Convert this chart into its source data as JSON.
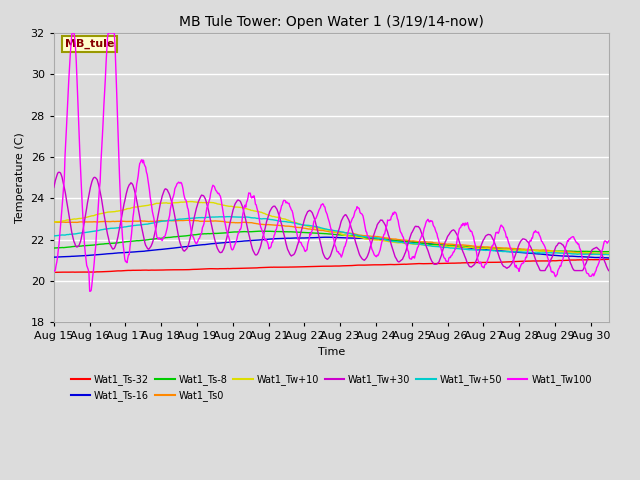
{
  "title": "MB Tule Tower: Open Water 1 (3/19/14-now)",
  "xlabel": "Time",
  "ylabel": "Temperature (C)",
  "ylim": [
    18,
    32
  ],
  "xlim": [
    0,
    15.5
  ],
  "yticks": [
    18,
    20,
    22,
    24,
    26,
    28,
    30,
    32
  ],
  "xtick_labels": [
    "Aug 15",
    "Aug 16",
    "Aug 17",
    "Aug 18",
    "Aug 19",
    "Aug 20",
    "Aug 21",
    "Aug 22",
    "Aug 23",
    "Aug 24",
    "Aug 25",
    "Aug 26",
    "Aug 27",
    "Aug 28",
    "Aug 29",
    "Aug 30"
  ],
  "background_color": "#dcdcdc",
  "plot_bg_color": "#dcdcdc",
  "grid_color": "#ffffff",
  "series_colors": {
    "Wat1_Ts-32": "#ff0000",
    "Wat1_Ts-16": "#0000dd",
    "Wat1_Ts-8": "#00cc00",
    "Wat1_Ts0": "#ff8800",
    "Wat1_Tw+10": "#dddd00",
    "Wat1_Tw+30": "#cc00cc",
    "Wat1_Tw+50": "#00cccc",
    "Wat1_Tw100": "#ff00ff"
  },
  "legend_box_facecolor": "#ffffcc",
  "legend_box_edgecolor": "#999900",
  "legend_box_text_color": "#880000",
  "legend_box_label": "MB_tule"
}
